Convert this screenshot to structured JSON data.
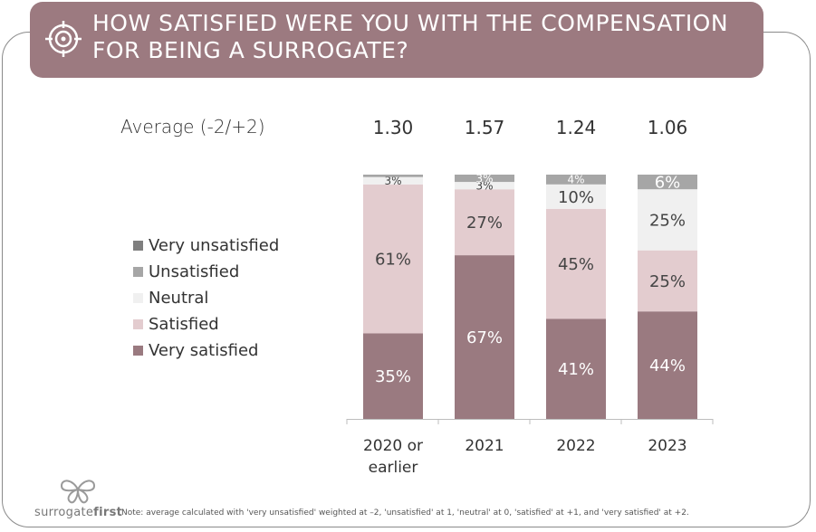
{
  "title": "HOW SATISFIED WERE YOU WITH THE COMPENSATION FOR BEING A SURROGATE?",
  "average_label": "Average (-2/+2)",
  "colors": {
    "banner": "#9c7a80",
    "very_satisfied": "#9a7a80",
    "satisfied": "#e3cccf",
    "neutral": "#f0f0f0",
    "unsatisfied": "#a6a6a6",
    "very_unsatisfied": "#7f7f7f"
  },
  "logo": {
    "icon": "butterfly-icon",
    "text_part1": "surrogate",
    "text_part2": "first"
  },
  "note": "Note:  average calculated with 'very unsatisfied' weighted at –2, 'unsatisfied' at 1, 'neutral' at 0, 'satisfied' at +1, and 'very satisfied' at +2.",
  "chart_data": {
    "type": "bar",
    "stacked": true,
    "percent_stacked": true,
    "categories": [
      "2020 or earlier",
      "2021",
      "2022",
      "2023"
    ],
    "averages": [
      "1.30",
      "1.57",
      "1.24",
      "1.06"
    ],
    "legend_position": "left",
    "series": [
      {
        "name": "Very satisfied",
        "color": "#9a7a80",
        "values": [
          35,
          67,
          41,
          44
        ],
        "labels": [
          "35%",
          "67%",
          "41%",
          "44%"
        ]
      },
      {
        "name": "Satisfied",
        "color": "#e3cccf",
        "values": [
          61,
          27,
          45,
          25
        ],
        "labels": [
          "61%",
          "27%",
          "45%",
          "25%"
        ]
      },
      {
        "name": "Neutral",
        "color": "#f0f0f0",
        "values": [
          3,
          3,
          10,
          25
        ],
        "labels": [
          "3%",
          "3%",
          "10%",
          "25%"
        ]
      },
      {
        "name": "Unsatisfied",
        "color": "#a6a6a6",
        "values": [
          1,
          3,
          4,
          6
        ],
        "labels": [
          "",
          "3%",
          "4%",
          "6%"
        ]
      },
      {
        "name": "Very unsatisfied",
        "color": "#7f7f7f",
        "values": [
          0,
          0,
          0,
          0
        ],
        "labels": [
          "",
          "",
          "",
          ""
        ]
      }
    ],
    "legend_order": [
      "Very unsatisfied",
      "Unsatisfied",
      "Neutral",
      "Satisfied",
      "Very satisfied"
    ]
  }
}
